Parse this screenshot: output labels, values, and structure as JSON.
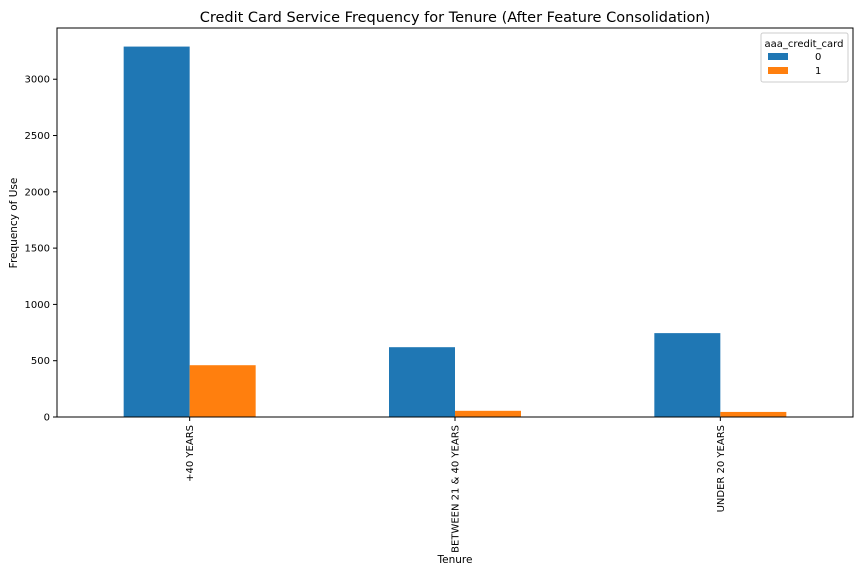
{
  "chart_data": {
    "type": "bar",
    "title": "Credit Card Service Frequency for Tenure (After Feature Consolidation)",
    "xlabel": "Tenure",
    "ylabel": "Frequency of Use",
    "categories": [
      "+40 YEARS",
      "BETWEEN 21 & 40 YEARS",
      "UNDER 20 YEARS"
    ],
    "series": [
      {
        "name": "0",
        "values": [
          3290,
          620,
          745
        ],
        "color": "#1f77b4"
      },
      {
        "name": "1",
        "values": [
          460,
          55,
          45
        ],
        "color": "#ff7f0e"
      }
    ],
    "ylim": [
      0,
      3455
    ],
    "yticks": [
      0,
      500,
      1000,
      1500,
      2000,
      2500,
      3000
    ],
    "legend": {
      "title": "aaa_credit_card",
      "position": "top-right"
    },
    "grid": false
  }
}
